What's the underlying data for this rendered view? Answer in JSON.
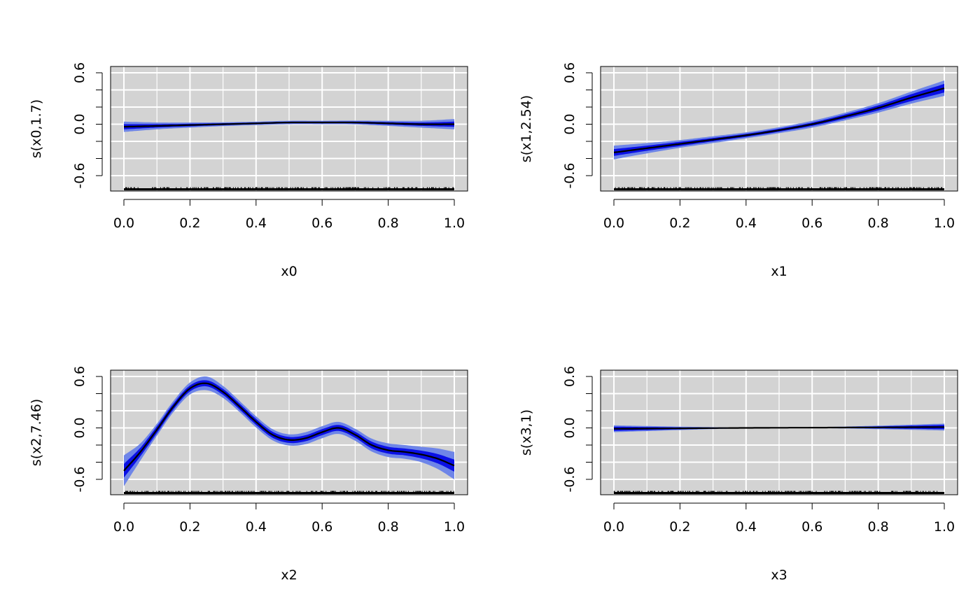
{
  "colors": {
    "panel_bg": "#d3d3d3",
    "grid": "#ffffff",
    "outer_band": "#6e85e8",
    "inner_band": "#0a10e6",
    "fit_line": "#000000"
  },
  "chart_data": [
    {
      "type": "line",
      "xlabel": "x0",
      "ylabel": "s(x0,1.7)",
      "xlim": [
        0,
        1
      ],
      "ylim": [
        -0.8,
        0.6
      ],
      "xticks": [
        "0.0",
        "0.2",
        "0.4",
        "0.6",
        "0.8",
        "1.0"
      ],
      "yticks": [
        "-0.6",
        "0.0",
        "0.6"
      ],
      "grid": true,
      "rug": true,
      "x": [
        0.0,
        0.1,
        0.2,
        0.3,
        0.4,
        0.5,
        0.6,
        0.7,
        0.8,
        0.9,
        1.0
      ],
      "fit": [
        -0.03,
        -0.02,
        -0.01,
        0.0,
        0.01,
        0.02,
        0.02,
        0.02,
        0.01,
        0.0,
        0.0
      ],
      "inner": [
        0.03,
        0.02,
        0.015,
        0.012,
        0.01,
        0.01,
        0.01,
        0.012,
        0.015,
        0.02,
        0.03
      ],
      "outer": [
        0.06,
        0.04,
        0.03,
        0.022,
        0.02,
        0.02,
        0.02,
        0.022,
        0.03,
        0.04,
        0.06
      ]
    },
    {
      "type": "line",
      "xlabel": "x1",
      "ylabel": "s(x1,2.54)",
      "xlim": [
        0,
        1
      ],
      "ylim": [
        -0.8,
        0.6
      ],
      "xticks": [
        "0.0",
        "0.2",
        "0.4",
        "0.6",
        "0.8",
        "1.0"
      ],
      "yticks": [
        "-0.6",
        "0.0",
        "0.6"
      ],
      "grid": true,
      "rug": true,
      "x": [
        0.0,
        0.1,
        0.2,
        0.3,
        0.4,
        0.5,
        0.6,
        0.7,
        0.8,
        0.9,
        1.0
      ],
      "fit": [
        -0.33,
        -0.28,
        -0.23,
        -0.18,
        -0.13,
        -0.07,
        0.0,
        0.09,
        0.19,
        0.31,
        0.42
      ],
      "inner": [
        0.04,
        0.03,
        0.025,
        0.02,
        0.018,
        0.018,
        0.02,
        0.025,
        0.03,
        0.04,
        0.05
      ],
      "outer": [
        0.08,
        0.06,
        0.045,
        0.04,
        0.035,
        0.035,
        0.04,
        0.045,
        0.055,
        0.07,
        0.09
      ]
    },
    {
      "type": "line",
      "xlabel": "x2",
      "ylabel": "s(x2,7.46)",
      "xlim": [
        0,
        1
      ],
      "ylim": [
        -0.8,
        0.6
      ],
      "xticks": [
        "0.0",
        "0.2",
        "0.4",
        "0.6",
        "0.8",
        "1.0"
      ],
      "yticks": [
        "-0.6",
        "0.0",
        "0.6"
      ],
      "grid": true,
      "rug": true,
      "x": [
        0.0,
        0.05,
        0.1,
        0.15,
        0.2,
        0.25,
        0.3,
        0.35,
        0.4,
        0.45,
        0.5,
        0.55,
        0.6,
        0.65,
        0.7,
        0.75,
        0.8,
        0.85,
        0.9,
        0.95,
        1.0
      ],
      "fit": [
        -0.5,
        -0.28,
        -0.02,
        0.25,
        0.46,
        0.52,
        0.42,
        0.25,
        0.07,
        -0.08,
        -0.14,
        -0.12,
        -0.05,
        0.0,
        -0.08,
        -0.2,
        -0.26,
        -0.28,
        -0.31,
        -0.36,
        -0.44
      ],
      "inner": [
        0.08,
        0.05,
        0.04,
        0.035,
        0.035,
        0.035,
        0.035,
        0.035,
        0.035,
        0.035,
        0.035,
        0.035,
        0.035,
        0.035,
        0.035,
        0.04,
        0.04,
        0.04,
        0.045,
        0.055,
        0.07
      ],
      "outer": [
        0.18,
        0.1,
        0.07,
        0.065,
        0.07,
        0.08,
        0.07,
        0.065,
        0.065,
        0.065,
        0.065,
        0.07,
        0.07,
        0.07,
        0.07,
        0.075,
        0.08,
        0.08,
        0.09,
        0.12,
        0.16
      ]
    },
    {
      "type": "line",
      "xlabel": "x3",
      "ylabel": "s(x3,1)",
      "xlim": [
        0,
        1
      ],
      "ylim": [
        -0.8,
        0.6
      ],
      "xticks": [
        "0.0",
        "0.2",
        "0.4",
        "0.6",
        "0.8",
        "1.0"
      ],
      "yticks": [
        "-0.6",
        "0.0",
        "0.6"
      ],
      "grid": true,
      "rug": true,
      "x": [
        0.0,
        0.2,
        0.4,
        0.6,
        0.8,
        1.0
      ],
      "fit": [
        -0.01,
        -0.005,
        0.0,
        0.003,
        0.006,
        0.01
      ],
      "inner": [
        0.025,
        0.012,
        0.003,
        0.003,
        0.012,
        0.025
      ],
      "outer": [
        0.04,
        0.02,
        0.005,
        0.005,
        0.02,
        0.04
      ]
    }
  ]
}
